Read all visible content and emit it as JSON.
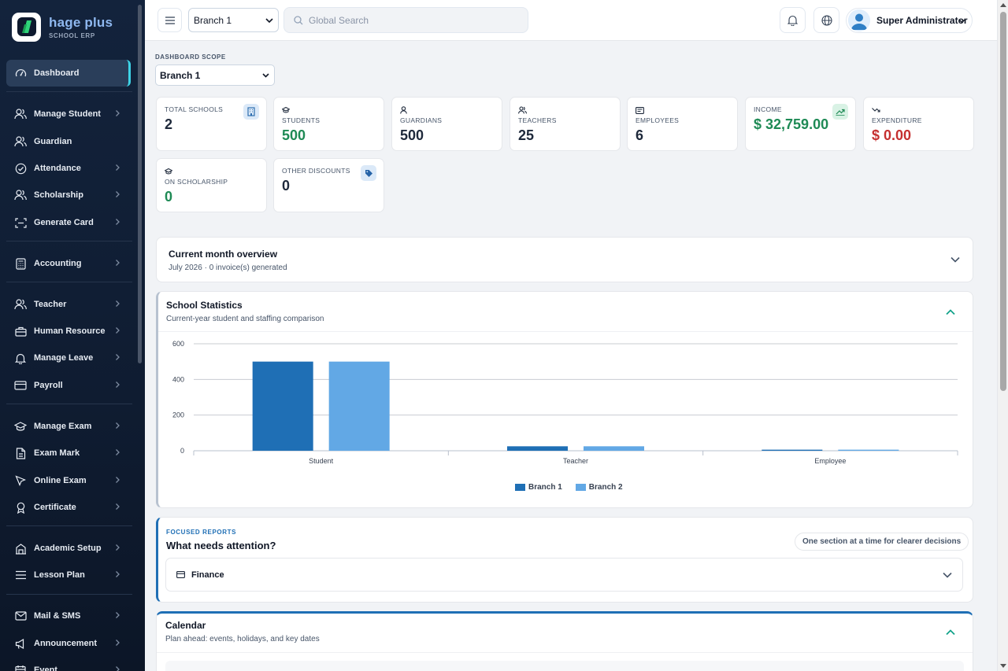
{
  "brand": {
    "name": "hage plus",
    "subtitle": "SCHOOL ERP"
  },
  "sidebar": {
    "items": [
      {
        "label": "Dashboard",
        "icon": "speedometer-icon",
        "active": true
      },
      {
        "label": "Manage Student",
        "icon": "users-icon"
      },
      {
        "label": "Guardian",
        "icon": "users-icon"
      },
      {
        "label": "Attendance",
        "icon": "check-circle-icon"
      },
      {
        "label": "Scholarship",
        "icon": "users-icon"
      },
      {
        "label": "Generate Card",
        "icon": "scan-card-icon"
      },
      {
        "label": "Accounting",
        "icon": "calculator-icon"
      },
      {
        "label": "Teacher",
        "icon": "users-icon"
      },
      {
        "label": "Human Resource",
        "icon": "briefcase-icon"
      },
      {
        "label": "Manage Leave",
        "icon": "bell-icon"
      },
      {
        "label": "Payroll",
        "icon": "credit-card-icon"
      },
      {
        "label": "Manage Exam",
        "icon": "graduation-cap-icon"
      },
      {
        "label": "Exam Mark",
        "icon": "document-icon"
      },
      {
        "label": "Online Exam",
        "icon": "cursor-icon"
      },
      {
        "label": "Certificate",
        "icon": "award-icon"
      },
      {
        "label": "Academic Setup",
        "icon": "building-icon"
      },
      {
        "label": "Lesson Plan",
        "icon": "list-icon"
      },
      {
        "label": "Mail & SMS",
        "icon": "mail-icon"
      },
      {
        "label": "Announcement",
        "icon": "megaphone-icon"
      },
      {
        "label": "Event",
        "icon": "calendar-icon"
      }
    ]
  },
  "header": {
    "branch": "Branch 1",
    "search_placeholder": "Global Search",
    "user_name": "Super Administrator"
  },
  "scope": {
    "label": "DASHBOARD SCOPE",
    "value": "Branch 1"
  },
  "stats": [
    {
      "label": "TOTAL SCHOOLS",
      "value": "2"
    },
    {
      "label": "STUDENTS",
      "value": "500"
    },
    {
      "label": "GUARDIANS",
      "value": "500"
    },
    {
      "label": "TEACHERS",
      "value": "25"
    },
    {
      "label": "EMPLOYEES",
      "value": "6"
    },
    {
      "label": "INCOME",
      "value": "$ 32,759.00"
    },
    {
      "label": "EXPENDITURE",
      "value": "$ 0.00"
    },
    {
      "label": "ON SCHOLARSHIP",
      "value": "0"
    },
    {
      "label": "OTHER DISCOUNTS",
      "value": "0"
    }
  ],
  "overview": {
    "title": "Current month overview",
    "subtitle": "July 2026 · 0 invoice(s) generated"
  },
  "statistics": {
    "title": "School Statistics",
    "subtitle": "Current-year student and staffing comparison"
  },
  "chart_data": {
    "type": "bar",
    "categories": [
      "Student",
      "Teacher",
      "Employee"
    ],
    "series": [
      {
        "name": "Branch 1",
        "values": [
          500,
          25,
          6
        ],
        "color": "#1f6fb5"
      },
      {
        "name": "Branch 2",
        "values": [
          500,
          25,
          6
        ],
        "color": "#62a8e5"
      }
    ],
    "yticks": [
      "0",
      "200",
      "400",
      "600"
    ],
    "ylim": [
      0,
      600
    ],
    "grid": true,
    "legend": "bottom-center"
  },
  "focused": {
    "kicker": "FOCUSED REPORTS",
    "title": "What needs attention?",
    "pill": "One section at a time for clearer decisions",
    "finance": "Finance"
  },
  "calendar": {
    "title": "Calendar",
    "subtitle": "Plan ahead: events, holidays, and key dates"
  },
  "colors": {
    "accent": "#1e8a55",
    "danger": "#c53030",
    "primary": "#1f6fb5",
    "teal": "#14a38b"
  }
}
